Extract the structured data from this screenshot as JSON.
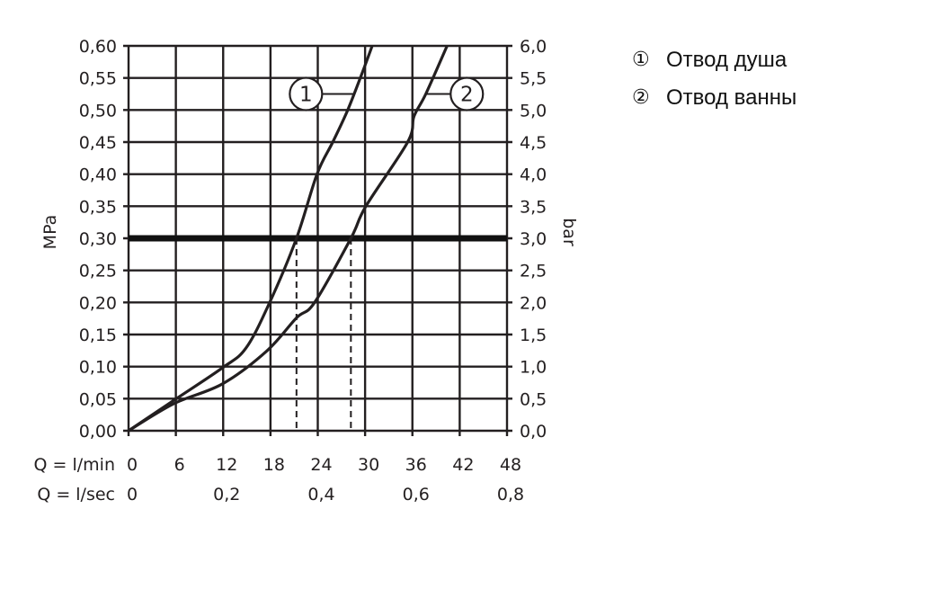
{
  "chart_data": {
    "type": "line",
    "xlabel": "Q = l/min",
    "xlabel_secondary": "Q = l/sec",
    "ylabel": "MPa",
    "ylabel_right": "bar",
    "xlim": [
      0,
      48
    ],
    "ylim": [
      0,
      0.6
    ],
    "x_ticks": [
      "0",
      "6",
      "12",
      "18",
      "24",
      "30",
      "36",
      "42",
      "48"
    ],
    "x_ticks_secondary": [
      {
        "value": 0,
        "label": "0"
      },
      {
        "value": 12,
        "label": "0,2"
      },
      {
        "value": 24,
        "label": "0,4"
      },
      {
        "value": 36,
        "label": "0,6"
      },
      {
        "value": 48,
        "label": "0,8"
      }
    ],
    "y_ticks": [
      "0,00",
      "0,05",
      "0,10",
      "0,15",
      "0,20",
      "0,25",
      "0,30",
      "0,35",
      "0,40",
      "0,45",
      "0,50",
      "0,55",
      "0,60"
    ],
    "y_ticks_right": [
      "0,0",
      "0,5",
      "1,0",
      "1,5",
      "2,0",
      "2,5",
      "3,0",
      "3,5",
      "4,0",
      "4,5",
      "5,0",
      "5,5",
      "6,0"
    ],
    "grid": true,
    "reference_line": {
      "y": 0.3
    },
    "reference_drops": [
      21.3,
      28.2
    ],
    "series": [
      {
        "name": "1",
        "label_at": [
          22.5,
          0.525
        ],
        "x": [
          0,
          5.7,
          11.9,
          14.9,
          17.9,
          21.3,
          23.9,
          25.9,
          27.8,
          29.7,
          30.9
        ],
        "y": [
          0,
          0.047,
          0.098,
          0.129,
          0.2,
          0.3,
          0.4,
          0.45,
          0.5,
          0.56,
          0.6
        ]
      },
      {
        "name": "2",
        "label_at": [
          42.9,
          0.525
        ],
        "x": [
          0,
          5.7,
          11.9,
          17.5,
          21.3,
          23.6,
          28.2,
          30.1,
          35.4,
          36.2,
          37.7,
          40.4
        ],
        "y": [
          0,
          0.042,
          0.073,
          0.124,
          0.176,
          0.2,
          0.3,
          0.35,
          0.45,
          0.49,
          0.525,
          0.6
        ]
      }
    ],
    "legend": "right"
  },
  "legend": {
    "items": [
      {
        "num": "①",
        "label": "Отвод душа"
      },
      {
        "num": "②",
        "label": "Отвод ванны"
      }
    ]
  }
}
